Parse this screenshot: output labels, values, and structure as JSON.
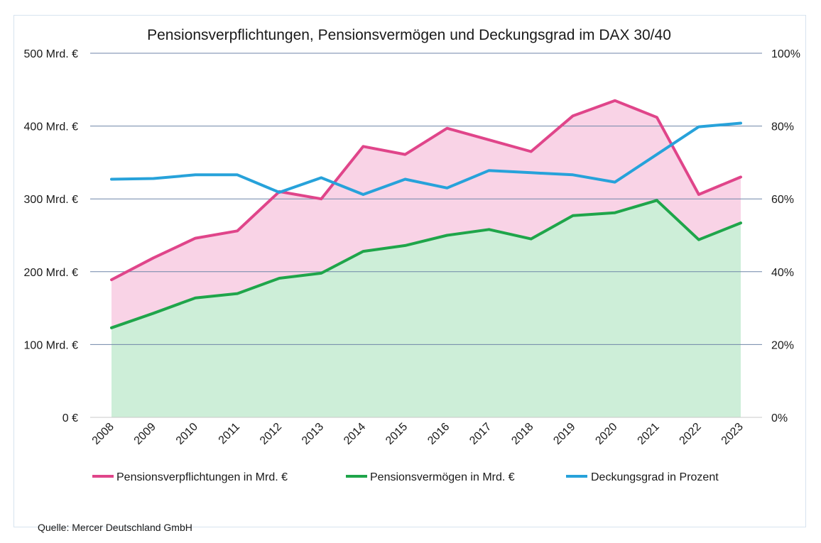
{
  "chart_data": {
    "type": "area",
    "title": "Pensionsverpflichtungen, Pensionsvermögen und Deckungsgrad im DAX 30/40",
    "categories": [
      "2008",
      "2009",
      "2010",
      "2011",
      "2012",
      "2013",
      "2014",
      "2015",
      "2016",
      "2017",
      "2018",
      "2019",
      "2020",
      "2021",
      "2022",
      "2023"
    ],
    "y_left": {
      "lim": [
        0,
        500
      ],
      "ticks": [
        0,
        100,
        200,
        300,
        400,
        500
      ],
      "tick_labels": [
        "0 €",
        "100 Mrd. €",
        "200 Mrd. €",
        "300 Mrd. €",
        "400 Mrd. €",
        "500 Mrd. €"
      ]
    },
    "y_right": {
      "lim": [
        0,
        100
      ],
      "ticks": [
        0,
        20,
        40,
        60,
        80,
        100
      ],
      "tick_labels": [
        "0%",
        "20%",
        "40%",
        "60%",
        "80%",
        "100%"
      ]
    },
    "grid": "horizontal",
    "legend_position": "bottom",
    "series": [
      {
        "name": "Pensionsverpflichtungen in Mrd. €",
        "axis": "left",
        "color": "#e0458a",
        "fill": "#f9d3e6",
        "values": [
          189,
          219,
          246,
          256,
          310,
          300,
          372,
          361,
          397,
          381,
          365,
          414,
          435,
          412,
          306,
          330
        ]
      },
      {
        "name": "Pensionsvermögen in Mrd. €",
        "axis": "left",
        "color": "#1fa54a",
        "fill": "#cdeed8",
        "values": [
          123,
          143,
          164,
          170,
          191,
          198,
          228,
          236,
          250,
          258,
          245,
          277,
          281,
          298,
          244,
          267
        ]
      },
      {
        "name": "Deckungsgrad in Prozent",
        "axis": "right",
        "color": "#27a2da",
        "values": [
          65.4,
          65.6,
          66.6,
          66.6,
          61.8,
          65.8,
          61.2,
          65.4,
          63.0,
          67.8,
          67.2,
          66.6,
          64.6,
          72.2,
          79.8,
          80.8
        ]
      }
    ]
  },
  "source": "Quelle: Mercer Deutschland GmbH"
}
